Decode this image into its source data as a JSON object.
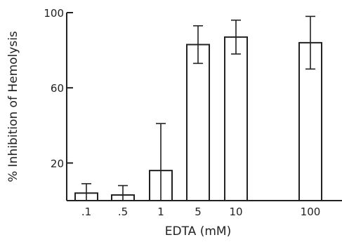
{
  "chart_data": {
    "type": "bar",
    "title": "",
    "xlabel": "EDTA (mM)",
    "ylabel": "% Inhibition of Hemolysis",
    "ylim": [
      0,
      100
    ],
    "yticks": [
      {
        "value": 100,
        "label": "100"
      },
      {
        "value": 60,
        "label": "60"
      },
      {
        "value": 20,
        "label": "20"
      }
    ],
    "categories": [
      ".1",
      ".5",
      "1",
      "5",
      "10",
      "100"
    ],
    "values": [
      4,
      3,
      16,
      83,
      87,
      84
    ],
    "errors": [
      5,
      5,
      25,
      10,
      9,
      14
    ],
    "grid": false,
    "legend": "none"
  }
}
